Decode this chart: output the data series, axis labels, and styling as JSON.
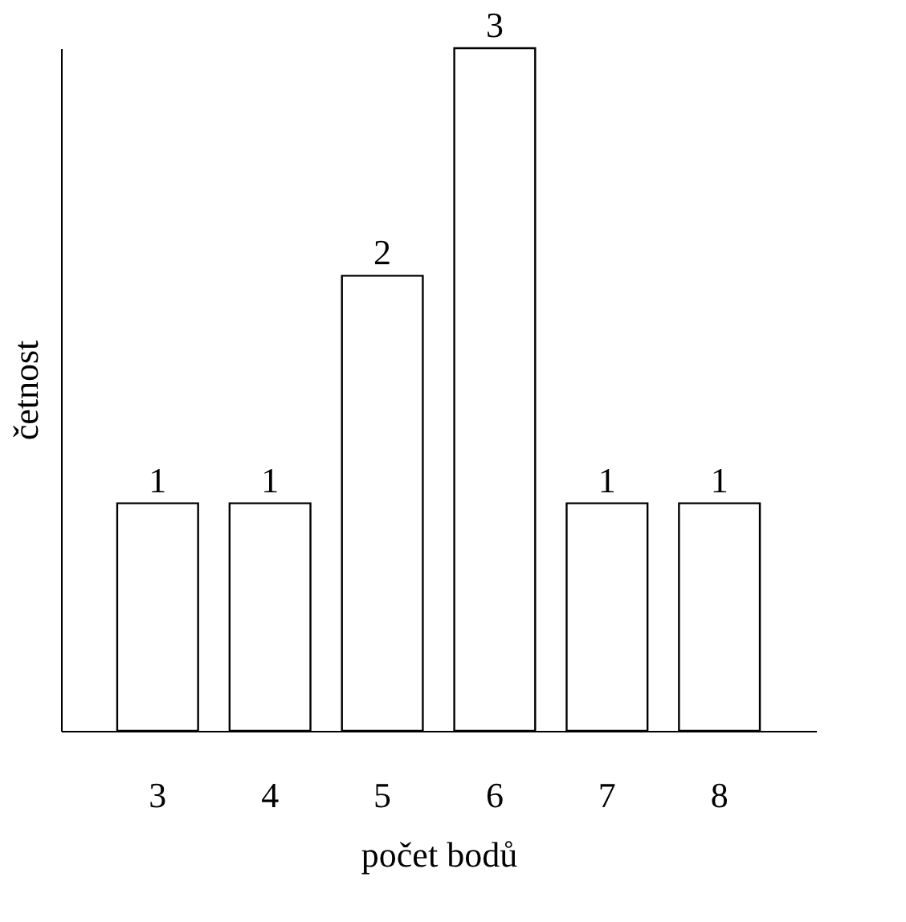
{
  "chart_data": {
    "type": "bar",
    "xlabel": "počet bodů",
    "ylabel": "četnost",
    "categories": [
      "3",
      "4",
      "5",
      "6",
      "7",
      "8"
    ],
    "values": [
      1,
      1,
      2,
      3,
      1,
      1
    ],
    "color": "#ffffff",
    "data_labels": true,
    "tick_labels": "x"
  }
}
